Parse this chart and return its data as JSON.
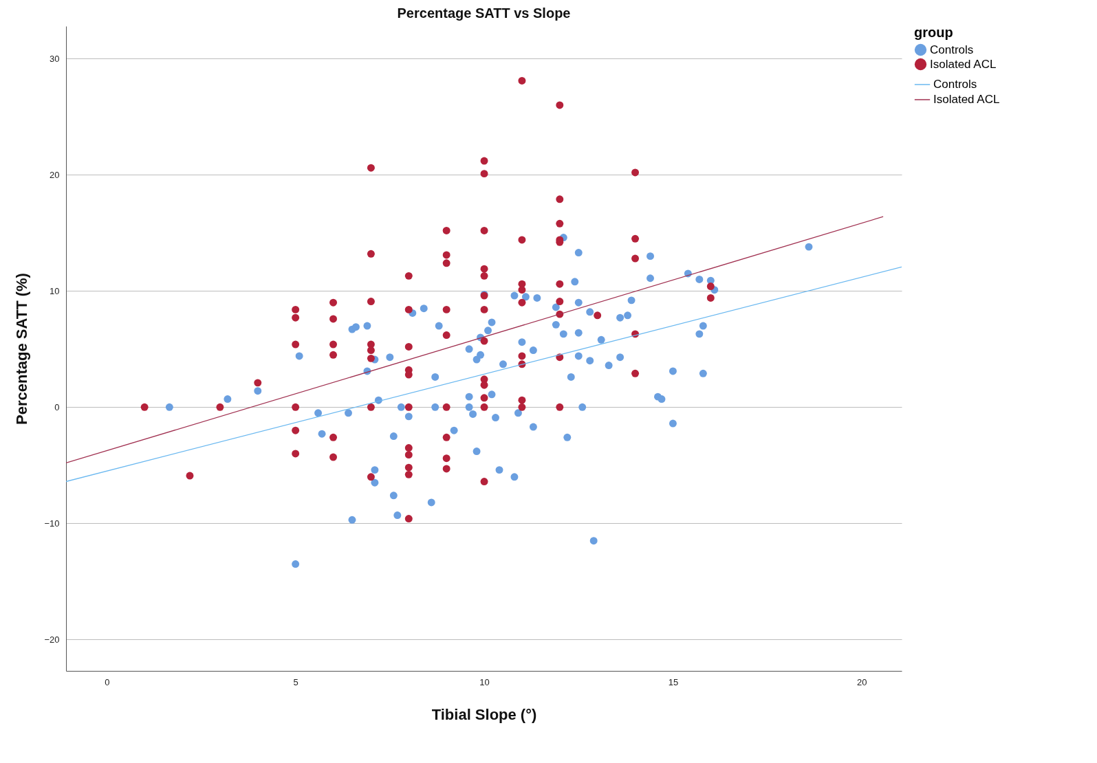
{
  "chart_data": {
    "type": "scatter",
    "title": "Percentage SATT vs Slope",
    "xlabel": "Tibial Slope (°)",
    "ylabel": "Percentage SATT (%)",
    "legend_title": "group",
    "xlim": [
      -1.08,
      21.06
    ],
    "ylim": [
      -22.7,
      32.8
    ],
    "xticks": [
      0,
      5,
      10,
      15,
      20
    ],
    "yticks": [
      -20,
      -10,
      0,
      10,
      20,
      30
    ],
    "grid": "y",
    "legend": "right",
    "marker": "circle",
    "series": [
      {
        "name": "Controls",
        "color": "#6a9fe0",
        "x": [
          1.66,
          3.2,
          4.0,
          5.1,
          5.0,
          5.6,
          5.7,
          6.4,
          6.5,
          6.5,
          6.6,
          6.9,
          6.9,
          7.1,
          7.1,
          7.1,
          7.2,
          7.5,
          7.6,
          7.6,
          7.7,
          7.8,
          8.0,
          8.1,
          8.4,
          8.6,
          8.7,
          8.7,
          8.8,
          9.2,
          9.6,
          9.6,
          9.6,
          9.7,
          9.8,
          9.8,
          9.9,
          9.9,
          10.0,
          10.1,
          10.2,
          10.2,
          10.3,
          10.4,
          10.5,
          10.8,
          10.8,
          10.9,
          11.0,
          11.1,
          11.3,
          11.3,
          11.4,
          11.9,
          11.9,
          12.1,
          12.1,
          12.2,
          12.3,
          12.4,
          12.5,
          12.5,
          12.5,
          12.5,
          12.6,
          12.8,
          12.8,
          12.9,
          13.1,
          13.3,
          13.6,
          13.6,
          13.8,
          13.9,
          14.4,
          14.4,
          14.6,
          14.7,
          15.0,
          15.0,
          15.4,
          15.7,
          15.7,
          15.8,
          15.8,
          16.0,
          16.1,
          18.6
        ],
        "values": [
          0,
          0.7,
          1.4,
          4.4,
          -13.5,
          -0.5,
          -2.3,
          -0.5,
          -9.7,
          6.7,
          6.9,
          7.0,
          3.1,
          4.1,
          -5.4,
          -6.5,
          0.6,
          4.3,
          -2.5,
          -7.6,
          -9.3,
          0,
          -0.8,
          8.1,
          8.5,
          -8.2,
          0,
          2.6,
          7.0,
          -2.0,
          0.9,
          5.0,
          0,
          -0.6,
          -3.8,
          4.1,
          6.0,
          4.5,
          9.7,
          6.6,
          7.3,
          1.1,
          -0.9,
          -5.4,
          3.7,
          9.6,
          -6.0,
          -0.5,
          5.6,
          9.5,
          4.9,
          -1.7,
          9.4,
          7.1,
          8.6,
          14.6,
          6.3,
          -2.6,
          2.6,
          10.8,
          9.0,
          6.4,
          13.3,
          4.4,
          0,
          4.0,
          8.2,
          -11.5,
          5.8,
          3.6,
          4.3,
          7.7,
          7.9,
          9.2,
          13.0,
          11.1,
          0.9,
          0.7,
          3.1,
          -1.4,
          11.5,
          11.0,
          6.3,
          7.0,
          2.9,
          10.9,
          10.1,
          13.8
        ]
      },
      {
        "name": "Isolated ACL",
        "color": "#b5213a",
        "x": [
          1,
          2.2,
          3,
          4,
          5,
          5,
          5,
          5,
          5,
          5,
          6,
          6,
          6,
          6,
          6,
          6,
          7,
          7,
          7,
          7,
          7,
          7,
          7,
          7,
          8,
          8,
          8,
          8,
          8,
          8,
          8,
          8,
          8,
          8,
          8,
          9,
          9,
          9,
          9,
          9,
          9,
          9,
          9,
          9,
          10,
          10,
          10,
          10,
          10,
          10,
          10,
          10,
          10,
          10,
          10,
          10,
          10,
          11,
          11,
          11,
          11,
          11,
          11,
          11,
          11,
          11,
          12,
          12,
          12,
          12,
          12,
          12,
          12,
          12,
          12,
          12,
          13,
          14,
          14,
          14,
          14,
          14,
          16,
          16
        ],
        "values": [
          0,
          -5.9,
          0,
          2.1,
          8.4,
          7.7,
          5.4,
          0,
          -2.0,
          -4.0,
          9.0,
          7.6,
          5.4,
          4.5,
          -2.6,
          -4.3,
          20.6,
          13.2,
          9.1,
          5.4,
          4.9,
          4.2,
          0,
          -6.0,
          11.3,
          8.4,
          5.2,
          3.2,
          2.8,
          0,
          -3.5,
          -4.1,
          -5.2,
          -5.8,
          -9.6,
          15.2,
          13.1,
          12.4,
          8.4,
          6.2,
          0,
          -2.6,
          -4.4,
          -5.3,
          21.2,
          20.1,
          15.2,
          11.9,
          11.3,
          9.6,
          8.4,
          5.7,
          2.4,
          1.9,
          0.8,
          0,
          -6.4,
          28.1,
          14.4,
          10.6,
          10.1,
          9.0,
          4.4,
          3.7,
          0.6,
          0,
          26.0,
          17.9,
          15.8,
          14.4,
          14.2,
          10.6,
          9.1,
          8.0,
          4.3,
          0,
          7.9,
          20.2,
          14.5,
          12.8,
          6.3,
          2.9,
          10.4,
          9.4
        ]
      },
      {
        "name": "Controls",
        "type": "line",
        "marker": "none",
        "color": "#6ab8f0",
        "line_style": "solid",
        "x": [
          -1.08,
          21.06
        ],
        "values": [
          -6.4,
          12.07
        ]
      },
      {
        "name": "Isolated ACL",
        "type": "line",
        "marker": "none",
        "color": "#a03050",
        "line_style": "solid",
        "x": [
          -1.08,
          20.57
        ],
        "values": [
          -4.8,
          16.4
        ]
      }
    ]
  }
}
